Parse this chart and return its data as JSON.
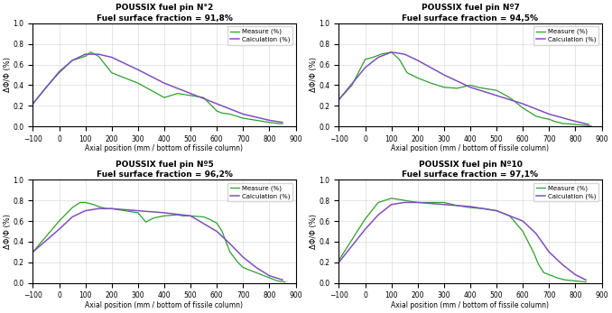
{
  "panels": [
    {
      "title": "POUSSIX fuel pin N°2",
      "subtitle": "Fuel surface fraction = 91,8%",
      "measure_x": [
        -100,
        -50,
        0,
        50,
        100,
        120,
        150,
        200,
        250,
        300,
        350,
        400,
        450,
        500,
        550,
        600,
        620,
        650,
        700,
        750,
        800,
        830,
        850
      ],
      "measure_y": [
        0.22,
        0.38,
        0.52,
        0.64,
        0.68,
        0.72,
        0.68,
        0.52,
        0.47,
        0.42,
        0.35,
        0.28,
        0.32,
        0.3,
        0.28,
        0.15,
        0.13,
        0.12,
        0.08,
        0.06,
        0.04,
        0.03,
        0.025
      ],
      "calc_x": [
        -100,
        0,
        50,
        100,
        150,
        200,
        300,
        400,
        500,
        600,
        700,
        800,
        850
      ],
      "calc_y": [
        0.22,
        0.53,
        0.64,
        0.7,
        0.7,
        0.67,
        0.55,
        0.42,
        0.32,
        0.22,
        0.12,
        0.06,
        0.04
      ]
    },
    {
      "title": "POUSSIX fuel pin Nº7",
      "subtitle": "Fuel surface fraction = 94,5%",
      "measure_x": [
        -100,
        -50,
        0,
        30,
        60,
        100,
        130,
        160,
        200,
        250,
        300,
        350,
        400,
        430,
        450,
        500,
        550,
        600,
        650,
        680,
        700,
        720,
        750,
        800,
        840,
        860
      ],
      "measure_y": [
        0.26,
        0.4,
        0.65,
        0.67,
        0.7,
        0.72,
        0.65,
        0.52,
        0.47,
        0.42,
        0.38,
        0.37,
        0.4,
        0.38,
        0.37,
        0.35,
        0.28,
        0.18,
        0.1,
        0.08,
        0.07,
        0.05,
        0.03,
        0.02,
        0.01,
        0.005
      ],
      "calc_x": [
        -100,
        0,
        50,
        100,
        150,
        200,
        300,
        400,
        500,
        600,
        700,
        800,
        850
      ],
      "calc_y": [
        0.26,
        0.57,
        0.67,
        0.72,
        0.7,
        0.64,
        0.5,
        0.38,
        0.3,
        0.22,
        0.12,
        0.05,
        0.02
      ]
    },
    {
      "title": "POUSSIX fuel pin Nº5",
      "subtitle": "Fuel surface fraction = 96,2%",
      "measure_x": [
        -100,
        -50,
        0,
        50,
        80,
        100,
        130,
        150,
        180,
        200,
        250,
        300,
        330,
        360,
        400,
        450,
        470,
        500,
        550,
        570,
        600,
        620,
        650,
        680,
        700,
        750,
        780,
        800,
        830,
        860
      ],
      "measure_y": [
        0.3,
        0.45,
        0.6,
        0.73,
        0.78,
        0.78,
        0.76,
        0.74,
        0.72,
        0.72,
        0.7,
        0.68,
        0.59,
        0.63,
        0.65,
        0.66,
        0.65,
        0.65,
        0.64,
        0.62,
        0.58,
        0.5,
        0.3,
        0.2,
        0.15,
        0.1,
        0.07,
        0.05,
        0.02,
        0.01
      ],
      "calc_x": [
        -100,
        0,
        50,
        100,
        150,
        200,
        300,
        400,
        500,
        600,
        650,
        700,
        750,
        800,
        850
      ],
      "calc_y": [
        0.3,
        0.52,
        0.64,
        0.7,
        0.72,
        0.72,
        0.7,
        0.68,
        0.65,
        0.5,
        0.38,
        0.25,
        0.15,
        0.07,
        0.03
      ]
    },
    {
      "title": "POUSSIX fuel pin Nº10",
      "subtitle": "Fuel surface fraction = 97,1%",
      "measure_x": [
        -100,
        -50,
        0,
        50,
        100,
        150,
        200,
        250,
        300,
        350,
        400,
        450,
        500,
        550,
        600,
        620,
        640,
        660,
        680,
        700,
        730,
        760,
        800,
        840
      ],
      "measure_y": [
        0.22,
        0.42,
        0.62,
        0.78,
        0.82,
        0.8,
        0.78,
        0.78,
        0.78,
        0.75,
        0.73,
        0.72,
        0.7,
        0.65,
        0.5,
        0.4,
        0.3,
        0.18,
        0.1,
        0.08,
        0.05,
        0.03,
        0.02,
        0.01
      ],
      "calc_x": [
        -100,
        0,
        50,
        100,
        150,
        200,
        300,
        400,
        500,
        600,
        650,
        700,
        750,
        800,
        840
      ],
      "calc_y": [
        0.2,
        0.52,
        0.66,
        0.76,
        0.78,
        0.78,
        0.76,
        0.74,
        0.7,
        0.6,
        0.48,
        0.3,
        0.18,
        0.08,
        0.03
      ]
    }
  ],
  "measure_color": "#2ca02c",
  "calc_color": "#7f4fbf",
  "xlim": [
    -100,
    900
  ],
  "ylim": [
    0,
    1
  ],
  "xticks": [
    -100,
    0,
    100,
    200,
    300,
    400,
    500,
    600,
    700,
    800,
    900
  ],
  "yticks": [
    0,
    0.2,
    0.4,
    0.6,
    0.8,
    1
  ],
  "xlabel": "Axial position (mm / bottom of fissile column)",
  "ylabel": "ΔΦ/Φ (%)",
  "legend_measure": "Measure (%)",
  "legend_calc": "Calculation (%)"
}
